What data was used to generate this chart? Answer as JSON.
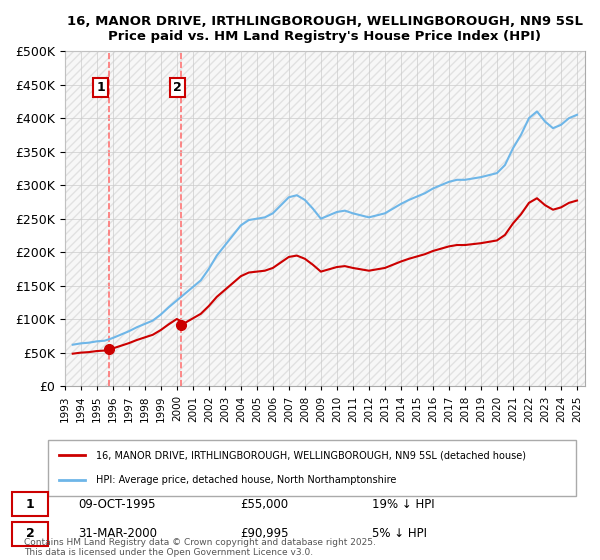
{
  "title1": "16, MANOR DRIVE, IRTHLINGBOROUGH, WELLINGBOROUGH, NN9 5SL",
  "title2": "Price paid vs. HM Land Registry's House Price Index (HPI)",
  "legend_line1": "16, MANOR DRIVE, IRTHLINGBOROUGH, WELLINGBOROUGH, NN9 5SL (detached house)",
  "legend_line2": "HPI: Average price, detached house, North Northamptonshire",
  "sale1_label": "1",
  "sale1_date": "09-OCT-1995",
  "sale1_price": "£55,000",
  "sale1_hpi": "19% ↓ HPI",
  "sale2_label": "2",
  "sale2_date": "31-MAR-2000",
  "sale2_price": "£90,995",
  "sale2_hpi": "5% ↓ HPI",
  "footer": "Contains HM Land Registry data © Crown copyright and database right 2025.\nThis data is licensed under the Open Government Licence v3.0.",
  "sale1_x": 1995.77,
  "sale1_y": 55000,
  "sale2_x": 2000.25,
  "sale2_y": 90995,
  "hpi_color": "#6eb6e8",
  "price_color": "#cc0000",
  "dashed_color": "#ff6666",
  "background_hatch_color": "#e8e8e8",
  "ylim": [
    0,
    500000
  ],
  "xlim": [
    1993,
    2025.5
  ]
}
